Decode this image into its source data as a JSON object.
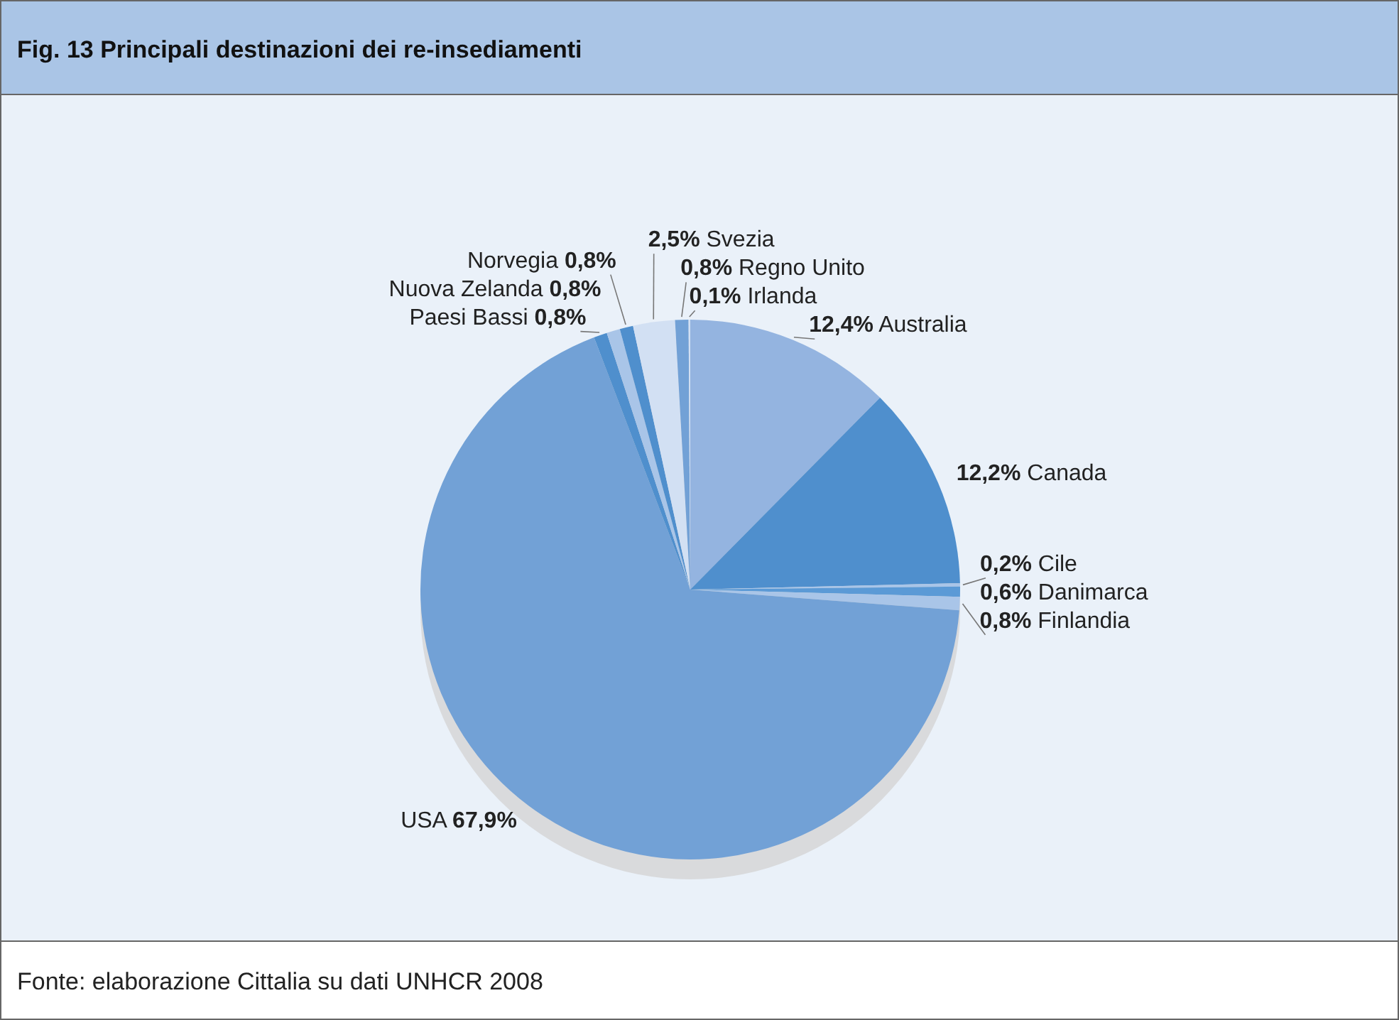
{
  "chart_data": {
    "type": "pie",
    "title": "Fig. 13   Principali destinazioni dei re-insediamenti",
    "categories": [
      "Australia",
      "Canada",
      "Cile",
      "Danimarca",
      "Finlandia",
      "USA",
      "Paesi Bassi",
      "Nuova Zelanda",
      "Norvegia",
      "Svezia",
      "Regno Unito",
      "Irlanda"
    ],
    "values": [
      12.4,
      12.2,
      0.2,
      0.6,
      0.8,
      67.9,
      0.8,
      0.8,
      0.8,
      2.5,
      0.8,
      0.1
    ],
    "value_labels": [
      "12,4%",
      "12,2%",
      "0,2%",
      "0,6%",
      "0,8%",
      "67,9%",
      "0,8%",
      "0,8%",
      "0,8%",
      "2,5%",
      "0,8%",
      "0,1%"
    ],
    "colors": [
      "#94b4e0",
      "#4f8fcd",
      "#a9c5e8",
      "#5b9ad6",
      "#a9c5e8",
      "#72a1d6",
      "#4f8fcd",
      "#a9c5e8",
      "#4f8fcd",
      "#d2e0f3",
      "#72a1d6",
      "#d2e0f3"
    ],
    "annotations": [
      "Fonte: elaborazione Cittalia su dati UNHCR 2008"
    ]
  }
}
